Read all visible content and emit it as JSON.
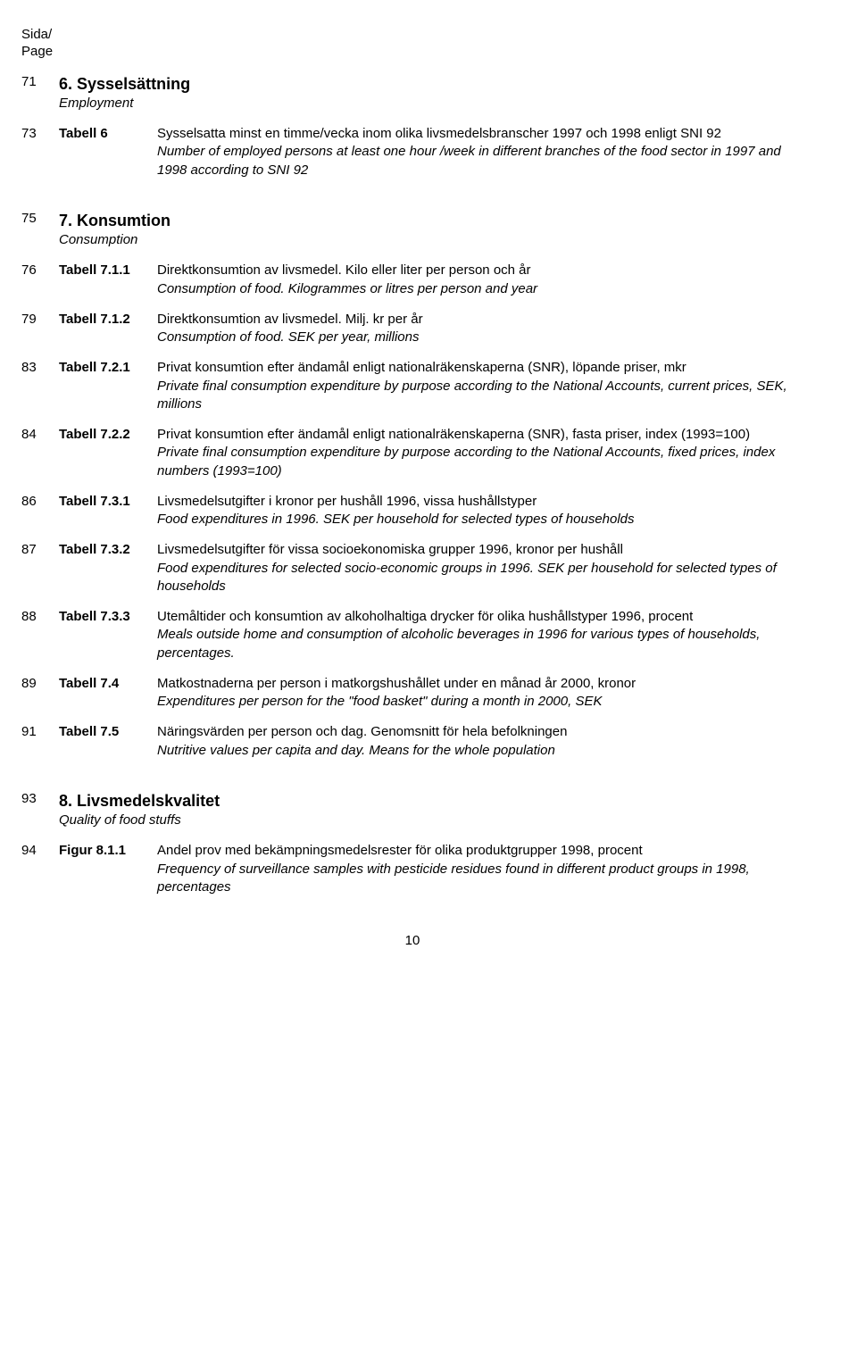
{
  "header": {
    "line1": "Sida/",
    "line2": "Page"
  },
  "sections": {
    "s6": {
      "page": "71",
      "num": "6.",
      "title": "Sysselsättning",
      "subtitle": "Employment"
    },
    "t6": {
      "page": "73",
      "ref": "Tabell 6",
      "sv": "Sysselsatta minst en timme/vecka inom olika livsmedelsbranscher 1997 och 1998 enligt SNI 92",
      "en": "Number of employed persons at least one hour /week in different branches of the food sector in 1997 and 1998 according to SNI 92"
    },
    "s7": {
      "page": "75",
      "num": "7.",
      "title": "Konsumtion",
      "subtitle": "Consumption"
    },
    "t711": {
      "page": "76",
      "ref": "Tabell 7.1.1",
      "sv": "Direktkonsumtion av livsmedel. Kilo eller liter per person och år",
      "en": "Consumption of  food. Kilogrammes or litres per person and year"
    },
    "t712": {
      "page": "79",
      "ref": "Tabell 7.1.2",
      "sv": "Direktkonsumtion av livsmedel. Milj. kr per år",
      "en": "Consumption of food. SEK per year, millions"
    },
    "t721": {
      "page": "83",
      "ref": "Tabell 7.2.1",
      "sv": "Privat konsumtion efter ändamål enligt nationalräkenskaperna (SNR), löpande priser, mkr",
      "en": "Private final consumption expenditure by purpose according to the National Accounts, current prices, SEK, millions"
    },
    "t722": {
      "page": "84",
      "ref": "Tabell 7.2.2",
      "sv": "Privat konsumtion efter ändamål enligt nationalräkenskaperna (SNR), fasta priser, index (1993=100)",
      "en": "Private final consumption expenditure by purpose according to the National Accounts, fixed prices, index numbers (1993=100)"
    },
    "t731": {
      "page": "86",
      "ref": "Tabell 7.3.1",
      "sv": "Livsmedelsutgifter i kronor per hushåll 1996, vissa hushållstyper",
      "en": "Food expenditures in 1996. SEK per household for selected types of households"
    },
    "t732": {
      "page": "87",
      "ref": "Tabell 7.3.2",
      "sv": "Livsmedelsutgifter för vissa socioekonomiska grupper 1996, kronor per hushåll",
      "en": "Food expenditures for selected socio-economic groups in 1996. SEK per household for selected types of households"
    },
    "t733": {
      "page": "88",
      "ref": "Tabell 7.3.3",
      "sv": "Utemåltider och konsumtion av alkoholhaltiga drycker för olika hushållstyper 1996, procent",
      "en": "Meals outside home and consumption of alcoholic beverages in 1996 for various types of households, percentages."
    },
    "t74": {
      "page": "89",
      "ref": "Tabell 7.4",
      "sv": "Matkostnaderna per person i matkorgshushållet under en månad år 2000, kronor",
      "en": "Expenditures per person for the \"food basket\" during a month in 2000, SEK"
    },
    "t75": {
      "page": "91",
      "ref": "Tabell 7.5",
      "sv": "Näringsvärden per person och dag. Genomsnitt för hela befolkningen",
      "en": "Nutritive values per capita and day. Means for the whole population"
    },
    "s8": {
      "page": "93",
      "num": "8.",
      "title": "Livsmedelskvalitet",
      "subtitle": "Quality of food stuffs"
    },
    "f811": {
      "page": "94",
      "ref": "Figur 8.1.1",
      "sv": "Andel prov med bekämpningsmedelsrester för olika produktgrupper 1998, procent",
      "en": "Frequency of surveillance samples with pesticide residues found in different product groups in 1998, percentages"
    }
  },
  "footer": {
    "pageno": "10"
  }
}
